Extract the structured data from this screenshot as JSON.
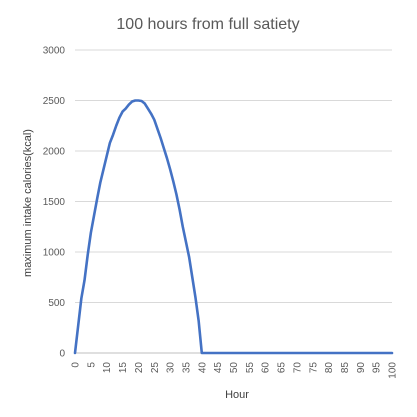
{
  "chart_data": {
    "type": "line",
    "title": "100 hours from full satiety",
    "xlabel": "Hour",
    "ylabel": "maximum intake calories(kcal)",
    "x": [
      0,
      1,
      2,
      3,
      4,
      5,
      6,
      7,
      8,
      9,
      10,
      11,
      12,
      13,
      14,
      15,
      16,
      17,
      18,
      19,
      20,
      21,
      22,
      23,
      24,
      25,
      26,
      27,
      28,
      29,
      30,
      31,
      32,
      33,
      34,
      35,
      36,
      37,
      38,
      39,
      40,
      41,
      42,
      43,
      44,
      45,
      46,
      47,
      48,
      49,
      50,
      51,
      52,
      53,
      54,
      55,
      56,
      57,
      58,
      59,
      60,
      61,
      62,
      63,
      64,
      65,
      66,
      67,
      68,
      69,
      70,
      71,
      72,
      73,
      74,
      75,
      76,
      77,
      78,
      79,
      80,
      81,
      82,
      83,
      84,
      85,
      86,
      87,
      88,
      89,
      90,
      91,
      92,
      93,
      94,
      95,
      96,
      97,
      98,
      99,
      100
    ],
    "series": [
      {
        "values": [
          0,
          270,
          540,
          720,
          970,
          1190,
          1360,
          1530,
          1690,
          1820,
          1950,
          2080,
          2160,
          2250,
          2330,
          2390,
          2420,
          2460,
          2490,
          2500,
          2500,
          2495,
          2470,
          2420,
          2370,
          2310,
          2220,
          2130,
          2030,
          1930,
          1820,
          1700,
          1570,
          1420,
          1250,
          1100,
          950,
          750,
          550,
          320,
          0,
          0,
          0,
          0,
          0,
          0,
          0,
          0,
          0,
          0,
          0,
          0,
          0,
          0,
          0,
          0,
          0,
          0,
          0,
          0,
          0,
          0,
          0,
          0,
          0,
          0,
          0,
          0,
          0,
          0,
          0,
          0,
          0,
          0,
          0,
          0,
          0,
          0,
          0,
          0,
          0,
          0,
          0,
          0,
          0,
          0,
          0,
          0,
          0,
          0,
          0,
          0,
          0,
          0,
          0,
          0,
          0,
          0,
          0,
          0,
          0
        ],
        "color": "#4472c4"
      }
    ],
    "xlim": [
      0,
      100
    ],
    "ylim": [
      0,
      3000
    ],
    "yticks": [
      0,
      500,
      1000,
      1500,
      2000,
      2500,
      3000
    ],
    "xticks": [
      0,
      5,
      10,
      15,
      20,
      25,
      30,
      35,
      40,
      45,
      50,
      55,
      60,
      65,
      70,
      75,
      80,
      85,
      90,
      95,
      100
    ],
    "grid": true,
    "legend": "none"
  }
}
